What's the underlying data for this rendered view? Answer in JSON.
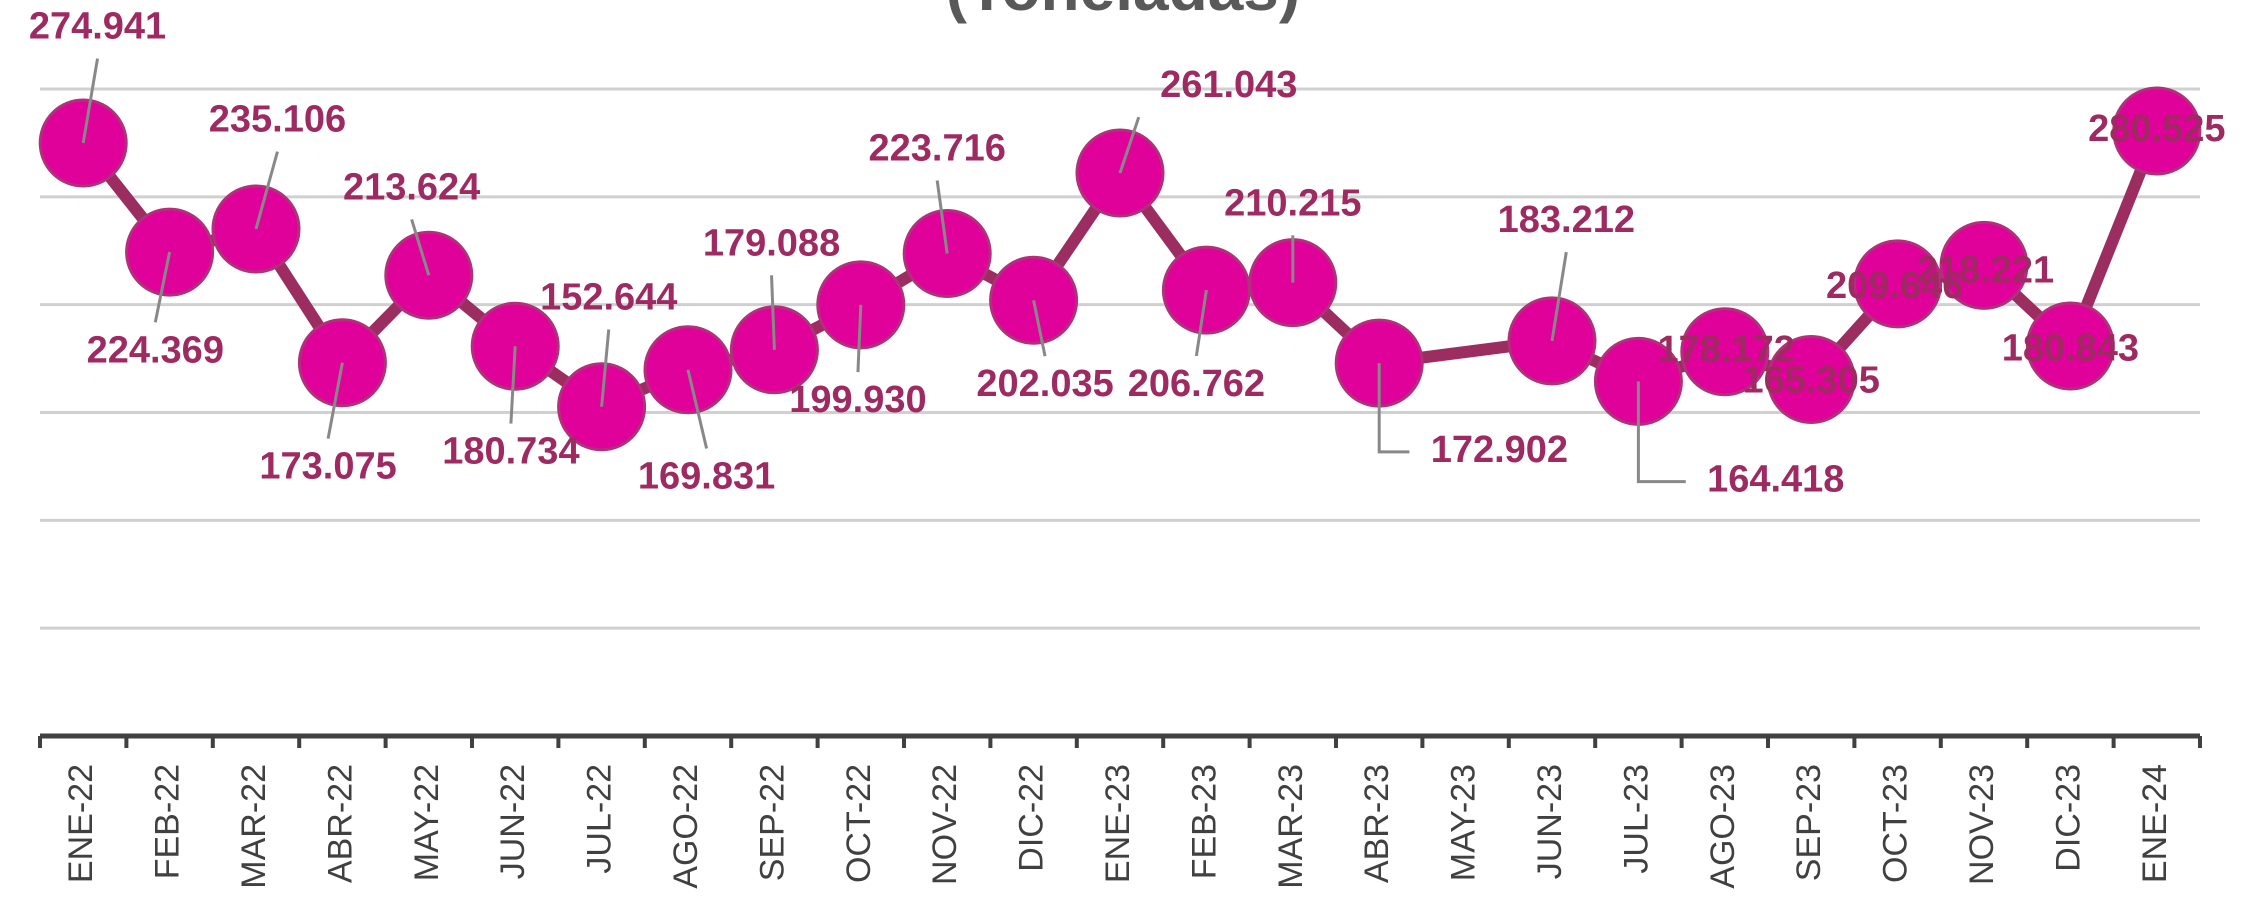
{
  "chart_data": {
    "type": "line",
    "title": "(Toneladas)",
    "categories": [
      "ENE-22",
      "FEB-22",
      "MAR-22",
      "ABR-22",
      "MAY-22",
      "JUN-22",
      "JUL-22",
      "AGO-22",
      "SEP-22",
      "OCT-22",
      "NOV-22",
      "DIC-22",
      "ENE-23",
      "FEB-23",
      "MAR-23",
      "ABR-23",
      "MAY-23",
      "JUN-23",
      "JUL-23",
      "AGO-23",
      "SEP-23",
      "OCT-23",
      "NOV-23",
      "DIC-23",
      "ENE-24"
    ],
    "series": [
      {
        "name": "Toneladas",
        "color": "#e0009a",
        "line_color": "#9b2d60",
        "values": [
          274941,
          224369,
          235106,
          173075,
          213624,
          180734,
          152644,
          169831,
          179088,
          199930,
          223716,
          202035,
          261043,
          206762,
          210215,
          172902,
          null,
          183212,
          164418,
          178172,
          165305,
          209646,
          218221,
          180843,
          280525
        ],
        "value_labels": [
          "274.941",
          "224.369",
          "235.106",
          "173.075",
          "213.624",
          "180.734",
          "152.644",
          "169.831",
          "179.088",
          "199.930",
          "223.716",
          "202.035",
          "261.043",
          "206.762",
          "210.215",
          "172.902",
          null,
          "183.212",
          "164.418",
          "178.172",
          "165.305",
          "209.646",
          "218.221",
          "180.843",
          "280.525"
        ]
      }
    ],
    "ylim": [
      0,
      300000
    ],
    "yticks": [
      0,
      50000,
      100000,
      150000,
      200000,
      250000,
      300000
    ],
    "grid": true
  }
}
